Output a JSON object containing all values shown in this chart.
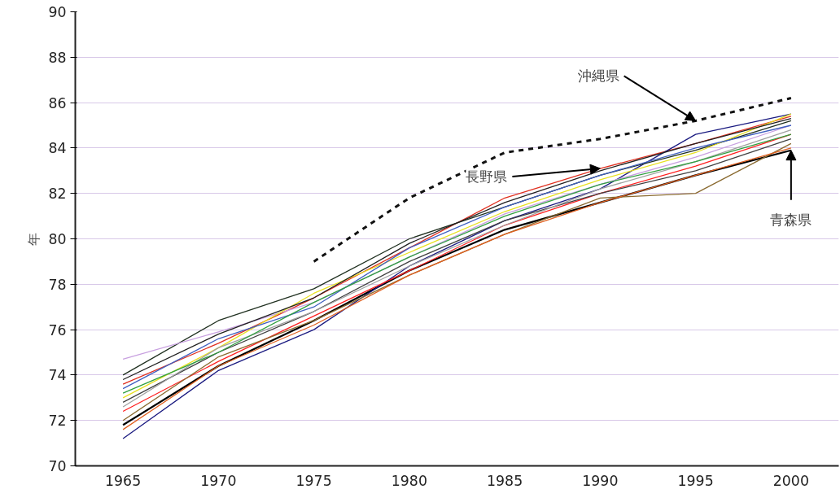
{
  "chart_data": {
    "type": "line",
    "ylabel": "年",
    "x": [
      1965,
      1970,
      1975,
      1980,
      1985,
      1990,
      1995,
      2000
    ],
    "xlim": [
      1962.5,
      2002.5
    ],
    "xticks": [
      1965,
      1970,
      1975,
      1980,
      1985,
      1990,
      1995,
      2000
    ],
    "ylim": [
      70,
      90
    ],
    "yticks": [
      70,
      72,
      74,
      76,
      78,
      80,
      82,
      84,
      86,
      88,
      90
    ],
    "grid": "y",
    "marker": "none",
    "line_style": "solid",
    "annotations": [
      {
        "text": "沖縄県",
        "x": 1995,
        "y": 85.2
      },
      {
        "text": "長野県",
        "x": 1990,
        "y": 83.1
      },
      {
        "text": "青森県",
        "x": 2000,
        "y": 83.9
      }
    ],
    "series": [
      {
        "color": "#111111",
        "line_style": "dashed",
        "values": [
          null,
          null,
          79.0,
          81.8,
          83.8,
          84.4,
          85.2,
          86.2
        ]
      },
      {
        "color": "#e03020",
        "values": [
          73.6,
          75.4,
          77.4,
          79.6,
          81.8,
          83.1,
          84.2,
          85.4
        ]
      },
      {
        "color": "#000000",
        "values": [
          71.8,
          74.4,
          76.4,
          78.6,
          80.4,
          81.6,
          82.8,
          83.9
        ]
      },
      {
        "color": "#1a1a80",
        "values": [
          71.2,
          74.2,
          76.0,
          78.8,
          80.8,
          82.2,
          84.6,
          85.5
        ]
      },
      {
        "color": "#203020",
        "values": [
          74.0,
          76.4,
          77.8,
          80.0,
          81.4,
          82.8,
          83.9,
          85.2
        ]
      },
      {
        "color": "#c8a0e0",
        "values": [
          74.7,
          75.9,
          77.2,
          79.2,
          81.1,
          82.4,
          83.6,
          85.0
        ]
      },
      {
        "color": "#e8e020",
        "values": [
          73.0,
          75.2,
          77.6,
          79.4,
          81.2,
          82.6,
          83.8,
          85.5
        ]
      },
      {
        "color": "#ff2020",
        "values": [
          72.4,
          74.6,
          76.6,
          78.6,
          80.6,
          82.0,
          83.2,
          84.6
        ]
      },
      {
        "color": "#404040",
        "values": [
          72.8,
          75.0,
          76.8,
          79.0,
          80.8,
          82.0,
          83.0,
          84.4
        ]
      },
      {
        "color": "#8a6a30",
        "values": [
          72.0,
          74.8,
          76.4,
          78.4,
          80.2,
          81.8,
          82.0,
          84.2
        ]
      },
      {
        "color": "#4060c0",
        "values": [
          73.4,
          75.6,
          77.0,
          79.6,
          81.4,
          82.8,
          84.0,
          85.0
        ]
      },
      {
        "color": "#202020",
        "values": [
          73.8,
          75.8,
          77.4,
          79.8,
          81.6,
          83.0,
          84.2,
          85.3
        ]
      },
      {
        "color": "#a0a0a0",
        "values": [
          72.6,
          75.2,
          76.8,
          78.8,
          80.6,
          82.2,
          83.4,
          84.8
        ]
      },
      {
        "color": "#30a040",
        "values": [
          73.2,
          75.0,
          77.2,
          79.2,
          81.0,
          82.4,
          83.4,
          84.6
        ]
      },
      {
        "color": "#e06020",
        "values": [
          71.6,
          74.4,
          76.2,
          78.4,
          80.2,
          81.6,
          82.8,
          84.0
        ]
      }
    ]
  }
}
